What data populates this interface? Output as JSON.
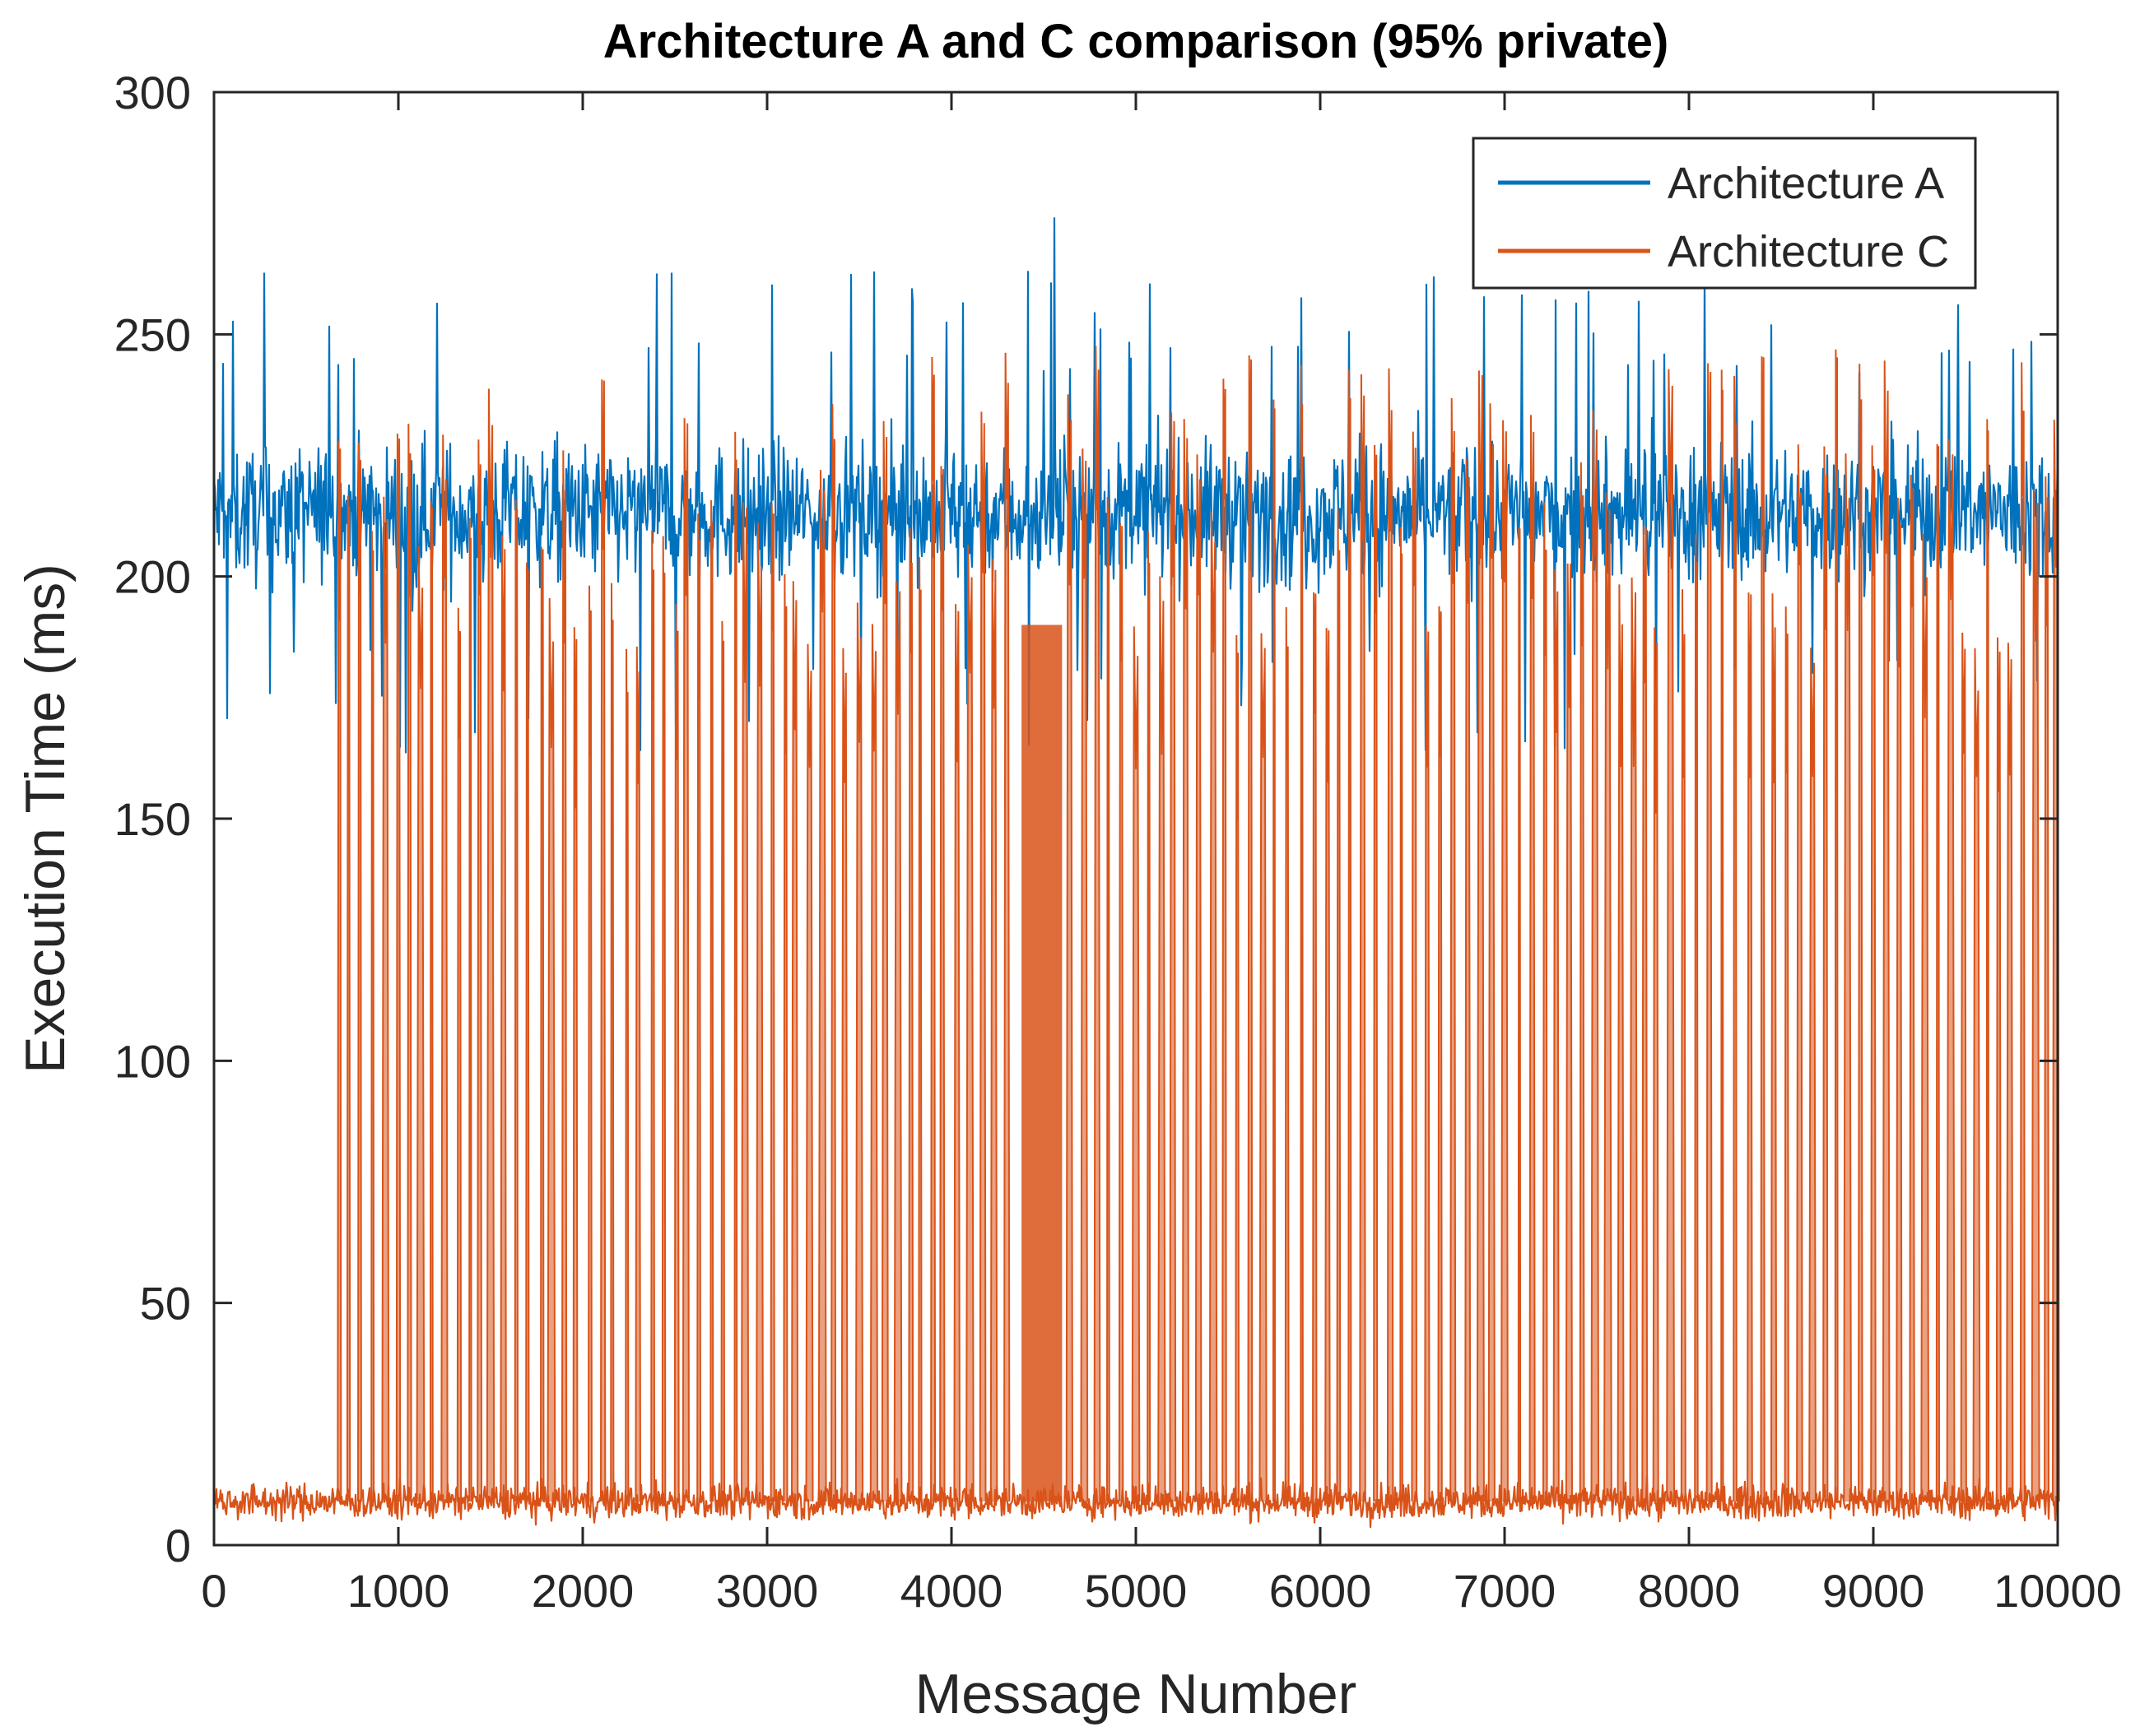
{
  "chart_data": {
    "type": "line",
    "title": "Architecture A and C comparison (95% private)",
    "xlabel": "Message Number",
    "ylabel": "Execution Time (ms)",
    "xlim": [
      0,
      10000
    ],
    "ylim": [
      0,
      300
    ],
    "xticks": [
      0,
      1000,
      2000,
      3000,
      4000,
      5000,
      6000,
      7000,
      8000,
      9000,
      10000
    ],
    "yticks": [
      0,
      50,
      100,
      150,
      200,
      250,
      300
    ],
    "xtick_labels": [
      "0",
      "1000",
      "2000",
      "3000",
      "4000",
      "5000",
      "6000",
      "7000",
      "8000",
      "9000",
      "10000"
    ],
    "ytick_labels": [
      "0",
      "50",
      "100",
      "150",
      "200",
      "250",
      "300"
    ],
    "grid": false,
    "legend_location": "top-right",
    "series": [
      {
        "name": "Architecture A",
        "color": "#0072BD",
        "description": "noisy band",
        "band_low": 180,
        "band_high": 240,
        "typical_mean": 213,
        "min_value": 160,
        "max_value": 274,
        "peak_x": 4560
      },
      {
        "name": "Architecture C",
        "color": "#D95319",
        "baseline_low": 2,
        "baseline_high": 18,
        "baseline_mean": 9,
        "spike_low": 175,
        "spike_high": 258,
        "first_spike_x": 680,
        "dense_spike_region": [
          4380,
          4600
        ],
        "spike_x": [
          680,
          730,
          790,
          860,
          930,
          1000,
          1060,
          1120,
          1180,
          1250,
          1330,
          1390,
          1440,
          1500,
          1570,
          1640,
          1700,
          1780,
          1830,
          1900,
          1960,
          2040,
          2110,
          2160,
          2240,
          2300,
          2380,
          2440,
          2510,
          2560,
          2630,
          2700,
          2760,
          2830,
          2880,
          2960,
          3030,
          3100,
          3150,
          3230,
          3300,
          3360,
          3420,
          3500,
          3580,
          3640,
          3710,
          3780,
          3830,
          3900,
          3950,
          4030,
          4100,
          4170,
          4230,
          4300,
          4640,
          4720,
          4790,
          4850,
          4920,
          5000,
          5070,
          5140,
          5200,
          5270,
          5340,
          5420,
          5480,
          5550,
          5620,
          5690,
          5750,
          5820,
          5900,
          5970,
          6040,
          6100,
          6160,
          6230,
          6300,
          6380,
          6440,
          6510,
          6580,
          6650,
          6720,
          6800,
          6870,
          6930,
          7000,
          7080,
          7150,
          7220,
          7280,
          7350,
          7420,
          7490,
          7560,
          7630,
          7700,
          7760,
          7820,
          7900,
          7970,
          8040,
          8110,
          8180,
          8250,
          8330,
          8400,
          8460,
          8530,
          8600,
          8670,
          8740,
          8800,
          8860,
          8930,
          9000,
          9070,
          9140,
          9210,
          9280,
          9350,
          9420,
          9490,
          9560,
          9620,
          9680,
          9740,
          9810,
          9880,
          9940,
          9990
        ]
      }
    ]
  }
}
